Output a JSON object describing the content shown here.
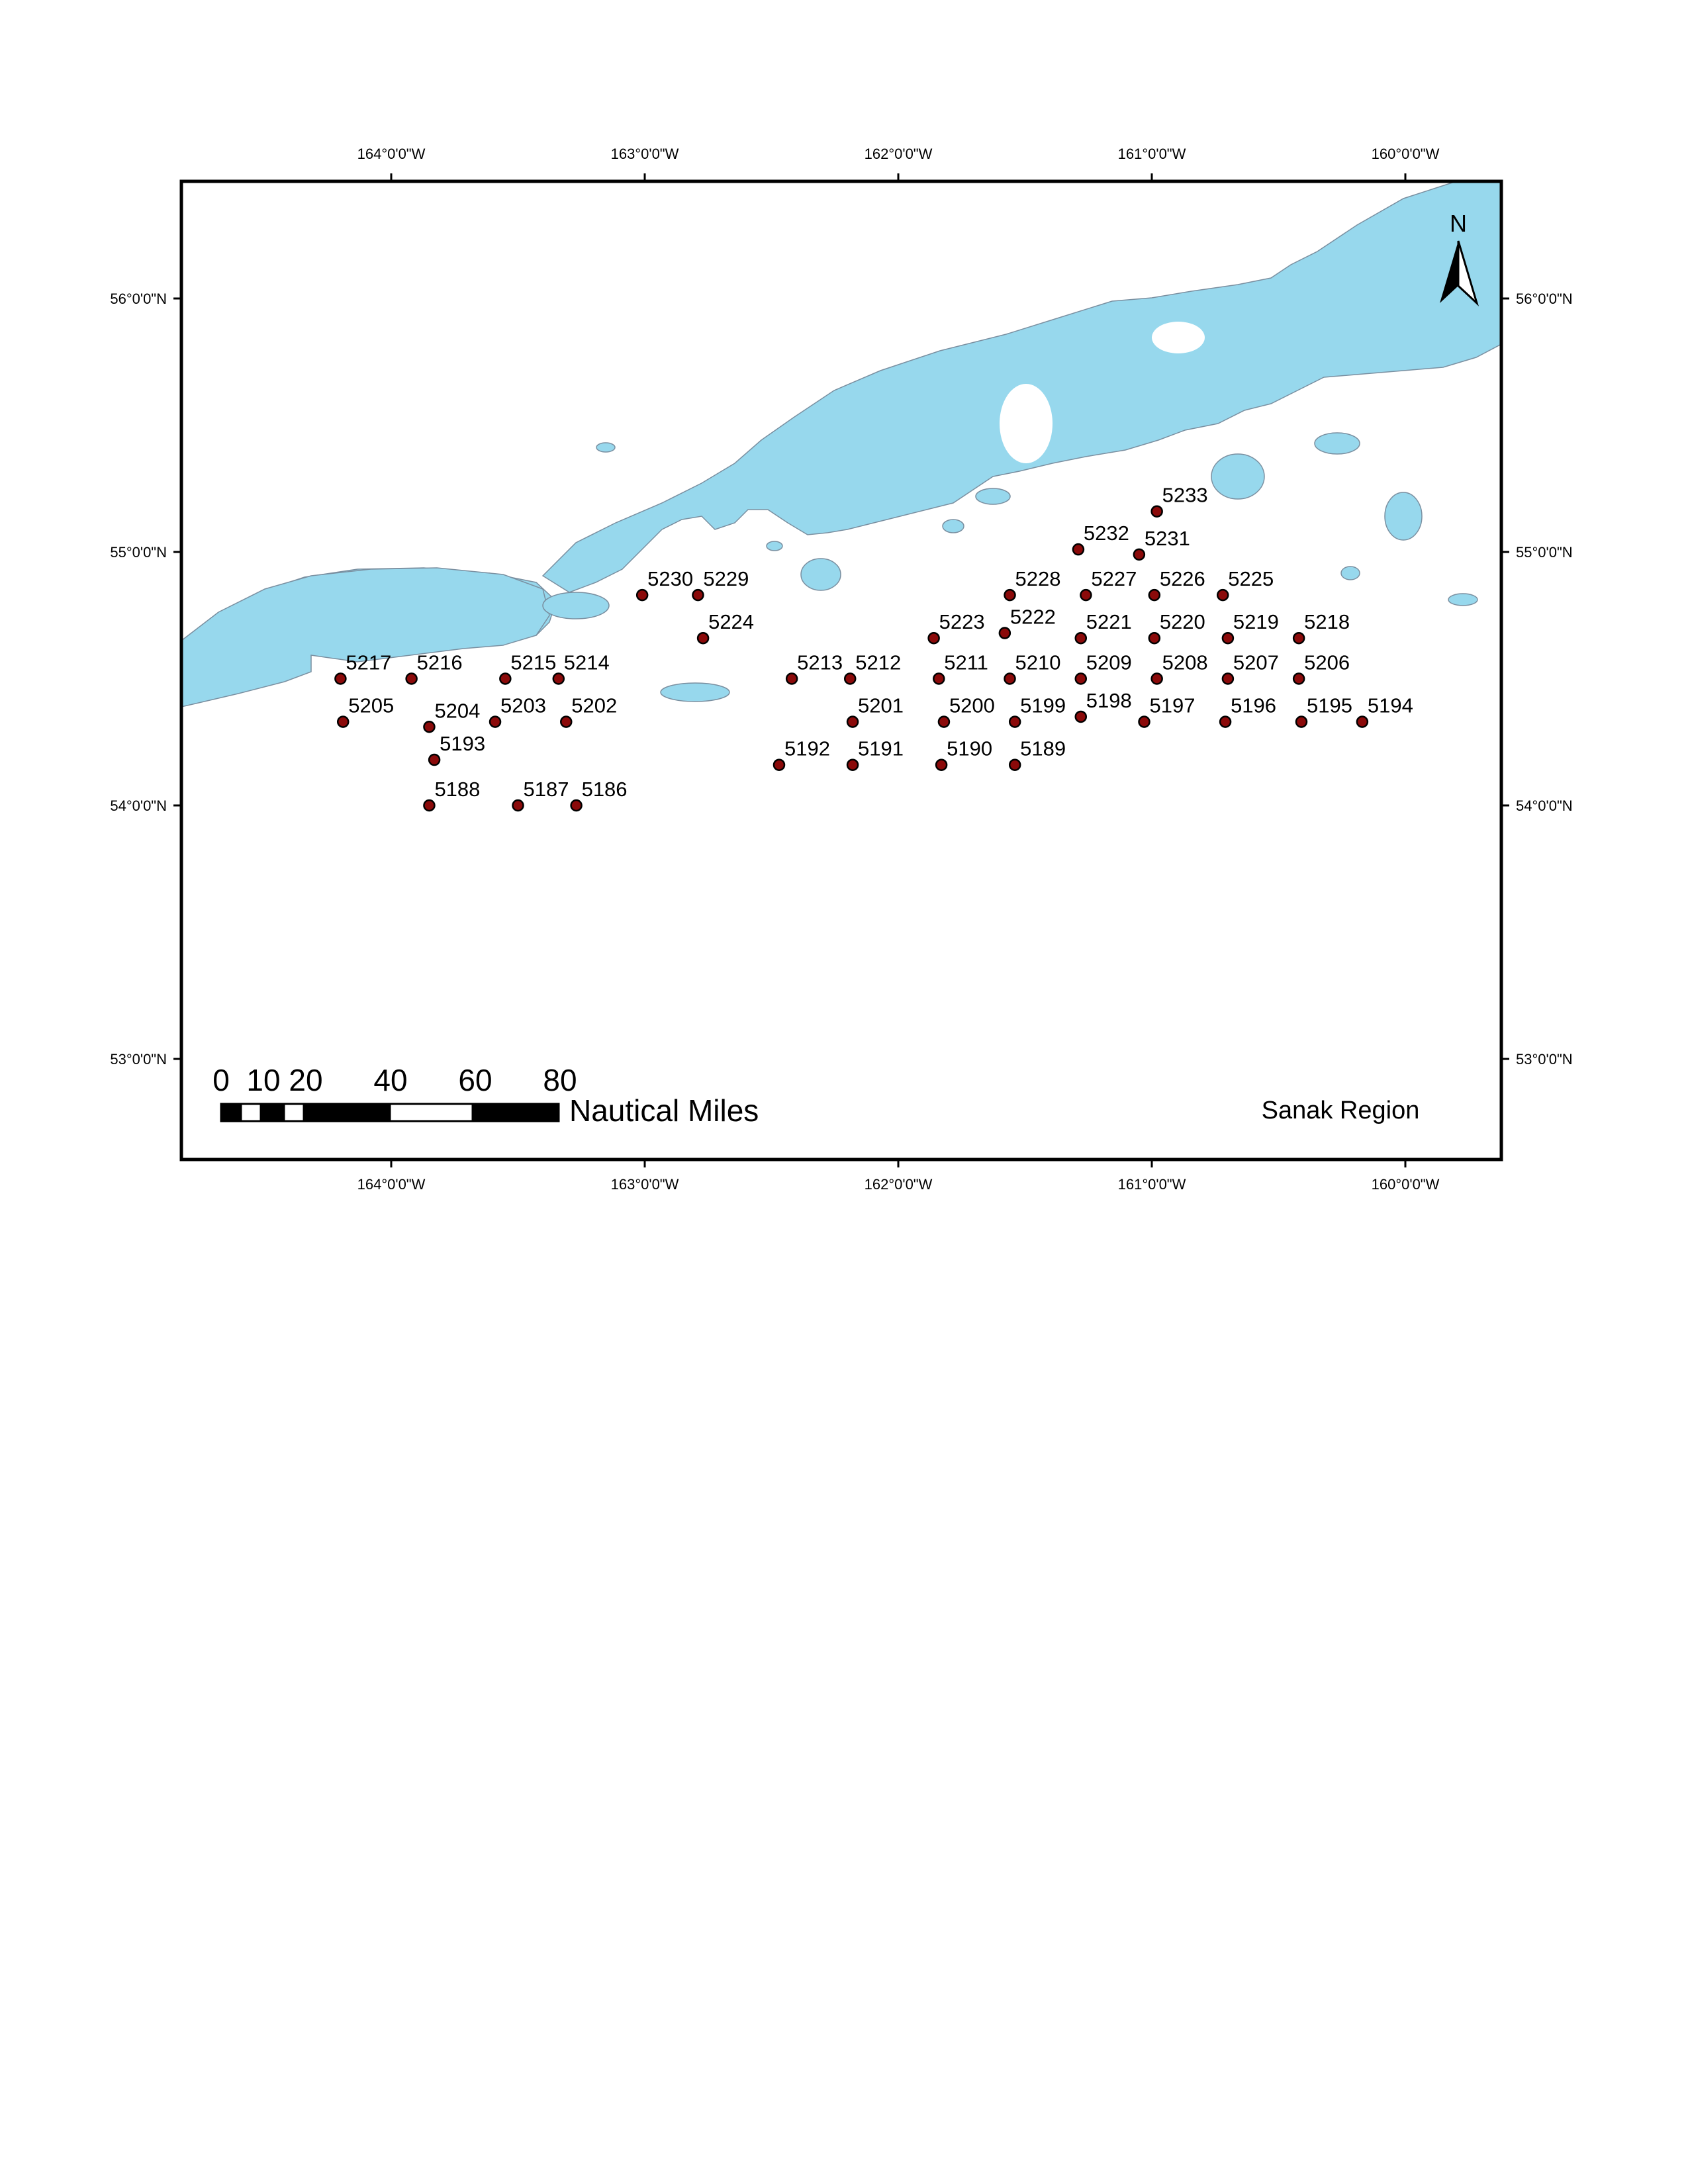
{
  "map": {
    "region_label": "Sanak Region",
    "north_label": "N",
    "colors": {
      "land": "#97d8ed",
      "land_outline": "#7a8fa0",
      "station_fill": "#8b0a0a",
      "station_stroke": "#000000",
      "frame": "#000000",
      "background": "#ffffff"
    },
    "longitude_ticks": [
      "164°0'0\"W",
      "163°0'0\"W",
      "162°0'0\"W",
      "161°0'0\"W",
      "160°0'0\"W"
    ],
    "latitude_ticks": [
      "56°0'0\"N",
      "55°0'0\"N",
      "54°0'0\"N",
      "53°0'0\"N"
    ],
    "scale_bar": {
      "numbers": [
        "0",
        "10",
        "20",
        "40",
        "60",
        "80"
      ],
      "unit": "Nautical Miles"
    },
    "stations": [
      {
        "id": "5233",
        "lon": -160.98,
        "lat": 55.16
      },
      {
        "id": "5232",
        "lon": -161.29,
        "lat": 55.01
      },
      {
        "id": "5231",
        "lon": -161.05,
        "lat": 54.99
      },
      {
        "id": "5230",
        "lon": -163.01,
        "lat": 54.83
      },
      {
        "id": "5229",
        "lon": -162.79,
        "lat": 54.83
      },
      {
        "id": "5228",
        "lon": -161.56,
        "lat": 54.83
      },
      {
        "id": "5227",
        "lon": -161.26,
        "lat": 54.83
      },
      {
        "id": "5226",
        "lon": -160.99,
        "lat": 54.83
      },
      {
        "id": "5225",
        "lon": -160.72,
        "lat": 54.83
      },
      {
        "id": "5224",
        "lon": -162.77,
        "lat": 54.66
      },
      {
        "id": "5223",
        "lon": -161.86,
        "lat": 54.66
      },
      {
        "id": "5222",
        "lon": -161.58,
        "lat": 54.68
      },
      {
        "id": "5221",
        "lon": -161.28,
        "lat": 54.66
      },
      {
        "id": "5220",
        "lon": -160.99,
        "lat": 54.66
      },
      {
        "id": "5219",
        "lon": -160.7,
        "lat": 54.66
      },
      {
        "id": "5218",
        "lon": -160.42,
        "lat": 54.66
      },
      {
        "id": "5217",
        "lon": -164.2,
        "lat": 54.5
      },
      {
        "id": "5216",
        "lon": -163.92,
        "lat": 54.5
      },
      {
        "id": "5215",
        "lon": -163.55,
        "lat": 54.5
      },
      {
        "id": "5214",
        "lon": -163.34,
        "lat": 54.5
      },
      {
        "id": "5213",
        "lon": -162.42,
        "lat": 54.5
      },
      {
        "id": "5212",
        "lon": -162.19,
        "lat": 54.5
      },
      {
        "id": "5211",
        "lon": -161.84,
        "lat": 54.5
      },
      {
        "id": "5210",
        "lon": -161.56,
        "lat": 54.5
      },
      {
        "id": "5209",
        "lon": -161.28,
        "lat": 54.5
      },
      {
        "id": "5208",
        "lon": -160.98,
        "lat": 54.5
      },
      {
        "id": "5207",
        "lon": -160.7,
        "lat": 54.5
      },
      {
        "id": "5206",
        "lon": -160.42,
        "lat": 54.5
      },
      {
        "id": "5205",
        "lon": -164.19,
        "lat": 54.33
      },
      {
        "id": "5204",
        "lon": -163.85,
        "lat": 54.31
      },
      {
        "id": "5203",
        "lon": -163.59,
        "lat": 54.33
      },
      {
        "id": "5202",
        "lon": -163.31,
        "lat": 54.33
      },
      {
        "id": "5201",
        "lon": -162.18,
        "lat": 54.33
      },
      {
        "id": "5200",
        "lon": -161.82,
        "lat": 54.33
      },
      {
        "id": "5199",
        "lon": -161.54,
        "lat": 54.33
      },
      {
        "id": "5198",
        "lon": -161.28,
        "lat": 54.35
      },
      {
        "id": "5197",
        "lon": -161.03,
        "lat": 54.33
      },
      {
        "id": "5196",
        "lon": -160.71,
        "lat": 54.33
      },
      {
        "id": "5195",
        "lon": -160.41,
        "lat": 54.33
      },
      {
        "id": "5194",
        "lon": -160.17,
        "lat": 54.33
      },
      {
        "id": "5193",
        "lon": -163.83,
        "lat": 54.18
      },
      {
        "id": "5192",
        "lon": -162.47,
        "lat": 54.16
      },
      {
        "id": "5191",
        "lon": -162.18,
        "lat": 54.16
      },
      {
        "id": "5190",
        "lon": -161.83,
        "lat": 54.16
      },
      {
        "id": "5189",
        "lon": -161.54,
        "lat": 54.16
      },
      {
        "id": "5188",
        "lon": -163.85,
        "lat": 54.0
      },
      {
        "id": "5187",
        "lon": -163.5,
        "lat": 54.0
      },
      {
        "id": "5186",
        "lon": -163.27,
        "lat": 54.0
      }
    ]
  }
}
